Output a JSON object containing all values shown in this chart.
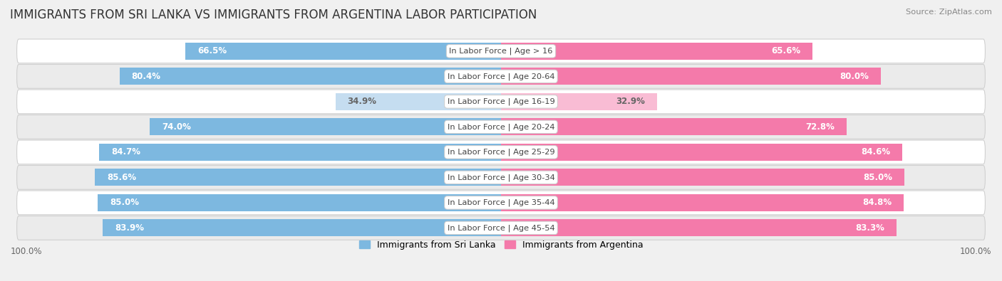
{
  "title": "IMMIGRANTS FROM SRI LANKA VS IMMIGRANTS FROM ARGENTINA LABOR PARTICIPATION",
  "source": "Source: ZipAtlas.com",
  "categories": [
    "In Labor Force | Age > 16",
    "In Labor Force | Age 20-64",
    "In Labor Force | Age 16-19",
    "In Labor Force | Age 20-24",
    "In Labor Force | Age 25-29",
    "In Labor Force | Age 30-34",
    "In Labor Force | Age 35-44",
    "In Labor Force | Age 45-54"
  ],
  "sri_lanka": [
    66.5,
    80.4,
    34.9,
    74.0,
    84.7,
    85.6,
    85.0,
    83.9
  ],
  "argentina": [
    65.6,
    80.0,
    32.9,
    72.8,
    84.6,
    85.0,
    84.8,
    83.3
  ],
  "sri_lanka_color": "#7db8e0",
  "sri_lanka_color_light": "#c5ddf0",
  "argentina_color": "#f47aaa",
  "argentina_color_light": "#f9bcd4",
  "bar_height": 0.68,
  "background_color": "#f0f0f0",
  "max_val": 100.0,
  "title_fontsize": 12,
  "label_fontsize": 8.5,
  "tick_fontsize": 8.5,
  "legend_fontsize": 9,
  "row_colors": [
    "#ffffff",
    "#ebebeb"
  ]
}
